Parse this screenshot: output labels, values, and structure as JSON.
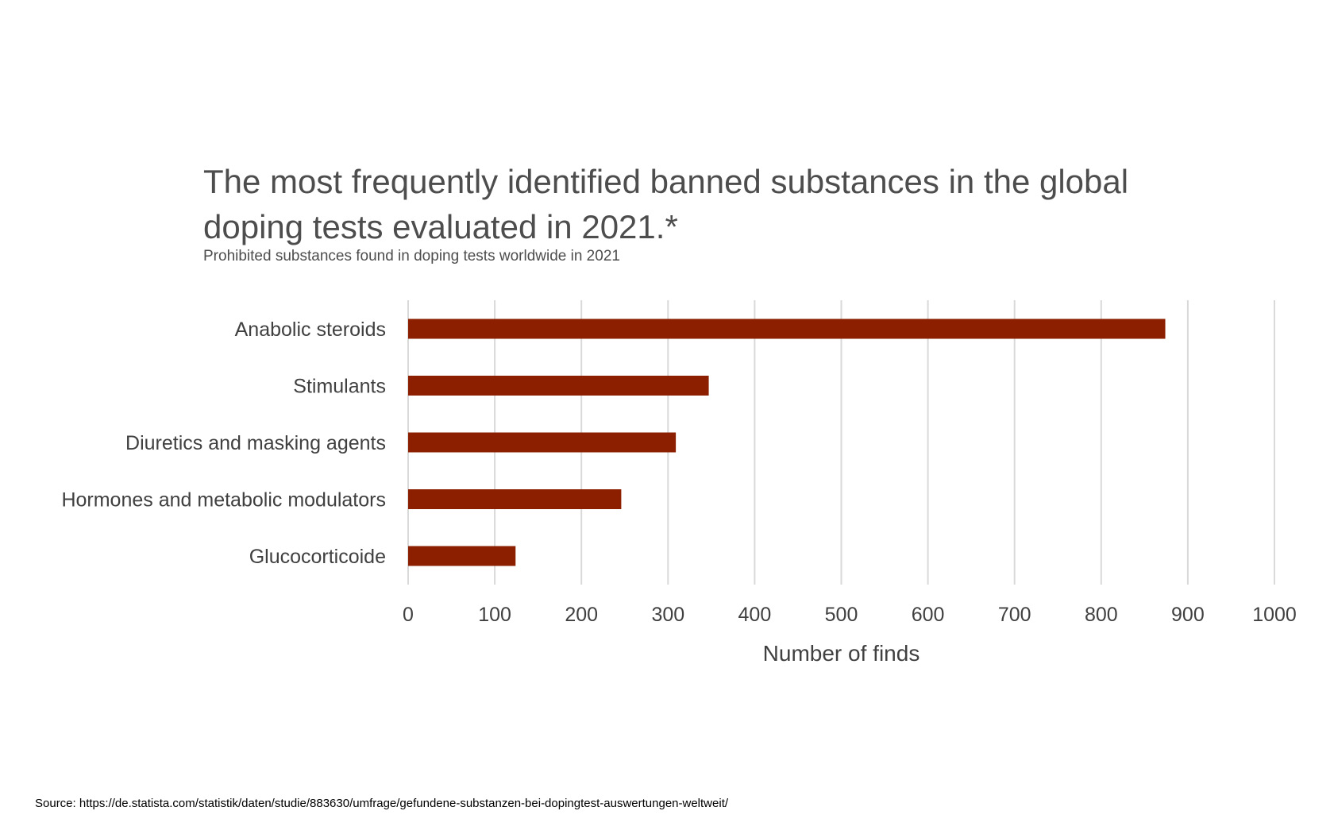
{
  "chart_data": {
    "type": "bar",
    "orientation": "horizontal",
    "title": "The most frequently identified banned substances in the global doping tests evaluated in 2021.*",
    "subtitle": "Prohibited substances found in doping tests worldwide in 2021",
    "categories": [
      "Anabolic steroids",
      "Stimulants",
      "Diuretics and masking agents",
      "Hormones and metabolic modulators",
      "Glucocorticoide"
    ],
    "values": [
      874,
      347,
      309,
      246,
      124
    ],
    "xlabel": "Number of finds",
    "ylabel": "",
    "xlim": [
      0,
      1000
    ],
    "xticks": [
      0,
      100,
      200,
      300,
      400,
      500,
      600,
      700,
      800,
      900,
      1000
    ],
    "grid": "vertical",
    "legend": "none",
    "bar_color": "#8b1f00"
  },
  "source": {
    "label": "Source:",
    "url": "https://de.statista.com/statistik/daten/studie/883630/umfrage/gefundene-substanzen-bei-dopingtest-auswertungen-weltweit/"
  }
}
